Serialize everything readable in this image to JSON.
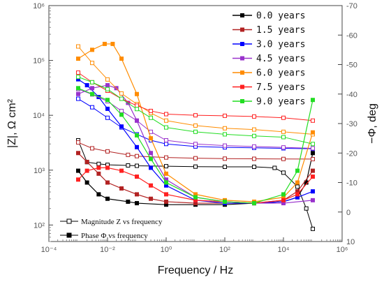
{
  "chart_data": {
    "type": "line",
    "xlabel": "Frequency / Hz",
    "ylabel_left": "|Z|, Ω cm²",
    "ylabel_right": "−Φ, deg",
    "x_scale": "log",
    "xlim": [
      0.0001,
      1000000
    ],
    "x_ticks": [
      "10⁻⁴",
      "10⁻²",
      "10⁰",
      "10²",
      "10⁴",
      "10⁶"
    ],
    "y_left_scale": "log",
    "ylim_left": [
      50,
      1000000
    ],
    "y_left_ticks": [
      "10²",
      "10³",
      "10⁴",
      "10⁵",
      "10⁶"
    ],
    "ylim_right": [
      10,
      -70
    ],
    "y_right_ticks": [
      "-70",
      "-60",
      "-50",
      "-40",
      "-30",
      "-20",
      "-10",
      "0",
      "10"
    ],
    "legend_position": "top-right",
    "inner_legend": [
      {
        "label": "Magnitude Z vs frequency",
        "marker": "open-square"
      },
      {
        "label": "Phase Φ vs frequency",
        "marker": "filled-square"
      }
    ],
    "series": [
      {
        "name": "0.0 years",
        "color": "#000000",
        "magnitude": [
          [
            0.001,
            3500
          ],
          [
            0.002,
            1400
          ],
          [
            0.005,
            1300
          ],
          [
            0.01,
            1250
          ],
          [
            0.05,
            1220
          ],
          [
            0.1,
            1200
          ],
          [
            1,
            1180
          ],
          [
            10,
            1160
          ],
          [
            100,
            1150
          ],
          [
            1000,
            1150
          ],
          [
            5000,
            1100
          ],
          [
            10000,
            900
          ],
          [
            30000,
            500
          ],
          [
            60000,
            200
          ],
          [
            100000,
            85
          ]
        ],
        "phase": [
          [
            0.001,
            -14
          ],
          [
            0.002,
            -10
          ],
          [
            0.005,
            -6
          ],
          [
            0.01,
            -4.5
          ],
          [
            0.05,
            -3.5
          ],
          [
            0.1,
            -3
          ],
          [
            1,
            -2.5
          ],
          [
            10,
            -2.5
          ],
          [
            100,
            -2.5
          ],
          [
            1000,
            -3
          ],
          [
            10000,
            -3.5
          ],
          [
            30000,
            -5
          ],
          [
            60000,
            -10
          ],
          [
            100000,
            -20
          ]
        ]
      },
      {
        "name": "1.5 years",
        "color": "#b22222",
        "magnitude": [
          [
            0.001,
            3200
          ],
          [
            0.003,
            2500
          ],
          [
            0.01,
            2200
          ],
          [
            0.05,
            1900
          ],
          [
            0.1,
            1800
          ],
          [
            1,
            1700
          ],
          [
            10,
            1650
          ],
          [
            100,
            1620
          ],
          [
            1000,
            1610
          ],
          [
            10000,
            1600
          ],
          [
            100000,
            1590
          ]
        ],
        "phase": [
          [
            0.001,
            -20
          ],
          [
            0.002,
            -17
          ],
          [
            0.005,
            -13
          ],
          [
            0.01,
            -10
          ],
          [
            0.03,
            -8
          ],
          [
            0.1,
            -6
          ],
          [
            0.3,
            -4.5
          ],
          [
            1,
            -3.5
          ],
          [
            10,
            -3
          ],
          [
            100,
            -3
          ],
          [
            1000,
            -3
          ],
          [
            10000,
            -4
          ],
          [
            30000,
            -7
          ],
          [
            100000,
            -14
          ]
        ]
      },
      {
        "name": "3.0 years",
        "color": "#0000ff",
        "magnitude": [
          [
            0.001,
            20000
          ],
          [
            0.003,
            14000
          ],
          [
            0.01,
            9000
          ],
          [
            0.03,
            6000
          ],
          [
            0.1,
            4500
          ],
          [
            0.3,
            3500
          ],
          [
            1,
            3000
          ],
          [
            10,
            2700
          ],
          [
            100,
            2600
          ],
          [
            1000,
            2550
          ],
          [
            10000,
            2500
          ],
          [
            100000,
            2450
          ]
        ],
        "phase": [
          [
            0.001,
            -45
          ],
          [
            0.002,
            -43
          ],
          [
            0.005,
            -39
          ],
          [
            0.01,
            -35
          ],
          [
            0.03,
            -29
          ],
          [
            0.1,
            -22
          ],
          [
            0.3,
            -15
          ],
          [
            1,
            -9
          ],
          [
            10,
            -4
          ],
          [
            100,
            -3
          ],
          [
            1000,
            -3
          ],
          [
            10000,
            -3.5
          ],
          [
            30000,
            -5
          ],
          [
            100000,
            -7
          ]
        ]
      },
      {
        "name": "4.5 years",
        "color": "#9932cc",
        "magnitude": [
          [
            0.001,
            30000
          ],
          [
            0.003,
            24000
          ],
          [
            0.01,
            18000
          ],
          [
            0.03,
            12000
          ],
          [
            0.1,
            8000
          ],
          [
            0.3,
            5000
          ],
          [
            1,
            3500
          ],
          [
            10,
            3000
          ],
          [
            100,
            2800
          ],
          [
            1000,
            2700
          ],
          [
            10000,
            2600
          ],
          [
            100000,
            2500
          ]
        ],
        "phase": [
          [
            0.001,
            -40
          ],
          [
            0.003,
            -42
          ],
          [
            0.01,
            -43
          ],
          [
            0.02,
            -42
          ],
          [
            0.05,
            -37
          ],
          [
            0.1,
            -31
          ],
          [
            0.3,
            -20
          ],
          [
            1,
            -11
          ],
          [
            10,
            -5
          ],
          [
            100,
            -3.5
          ],
          [
            1000,
            -3
          ],
          [
            10000,
            -3
          ],
          [
            100000,
            -4
          ]
        ]
      },
      {
        "name": "6.0 years",
        "color": "#ff8c00",
        "magnitude": [
          [
            0.001,
            180000
          ],
          [
            0.003,
            90000
          ],
          [
            0.01,
            45000
          ],
          [
            0.03,
            25000
          ],
          [
            0.1,
            16000
          ],
          [
            0.3,
            11000
          ],
          [
            1,
            8000
          ],
          [
            10,
            6500
          ],
          [
            100,
            5800
          ],
          [
            1000,
            5500
          ],
          [
            10000,
            5000
          ],
          [
            100000,
            4500
          ]
        ],
        "phase": [
          [
            0.001,
            -52
          ],
          [
            0.003,
            -55
          ],
          [
            0.008,
            -57
          ],
          [
            0.015,
            -57
          ],
          [
            0.03,
            -52
          ],
          [
            0.1,
            -40
          ],
          [
            0.3,
            -25
          ],
          [
            1,
            -13
          ],
          [
            10,
            -6
          ],
          [
            100,
            -4
          ],
          [
            1000,
            -3.5
          ],
          [
            10000,
            -5
          ],
          [
            30000,
            -10
          ],
          [
            100000,
            -27
          ]
        ]
      },
      {
        "name": "7.5 years",
        "color": "#ff2020",
        "magnitude": [
          [
            0.001,
            60000
          ],
          [
            0.003,
            40000
          ],
          [
            0.01,
            28000
          ],
          [
            0.03,
            20000
          ],
          [
            0.1,
            15000
          ],
          [
            0.3,
            12000
          ],
          [
            1,
            10500
          ],
          [
            10,
            10000
          ],
          [
            100,
            9800
          ],
          [
            1000,
            9500
          ],
          [
            10000,
            9000
          ],
          [
            100000,
            8000
          ]
        ],
        "phase": [
          [
            0.001,
            -11
          ],
          [
            0.002,
            -14
          ],
          [
            0.005,
            -15
          ],
          [
            0.01,
            -15
          ],
          [
            0.03,
            -14
          ],
          [
            0.1,
            -12
          ],
          [
            0.3,
            -9
          ],
          [
            1,
            -6
          ],
          [
            10,
            -4
          ],
          [
            100,
            -3.5
          ],
          [
            1000,
            -3
          ],
          [
            10000,
            -4
          ],
          [
            30000,
            -6
          ],
          [
            100000,
            -12
          ]
        ]
      },
      {
        "name": "9.0 years",
        "color": "#22dd22",
        "magnitude": [
          [
            0.001,
            50000
          ],
          [
            0.003,
            40000
          ],
          [
            0.01,
            30000
          ],
          [
            0.03,
            20000
          ],
          [
            0.1,
            13000
          ],
          [
            0.3,
            9000
          ],
          [
            1,
            6000
          ],
          [
            10,
            5000
          ],
          [
            100,
            4500
          ],
          [
            1000,
            4200
          ],
          [
            10000,
            4000
          ],
          [
            100000,
            3000
          ]
        ],
        "phase": [
          [
            0.001,
            -42
          ],
          [
            0.003,
            -40
          ],
          [
            0.01,
            -38
          ],
          [
            0.03,
            -33
          ],
          [
            0.1,
            -26
          ],
          [
            0.3,
            -18
          ],
          [
            1,
            -10
          ],
          [
            10,
            -5
          ],
          [
            100,
            -3.5
          ],
          [
            1000,
            -3
          ],
          [
            10000,
            -6
          ],
          [
            30000,
            -14
          ],
          [
            100000,
            -38
          ]
        ]
      }
    ]
  }
}
